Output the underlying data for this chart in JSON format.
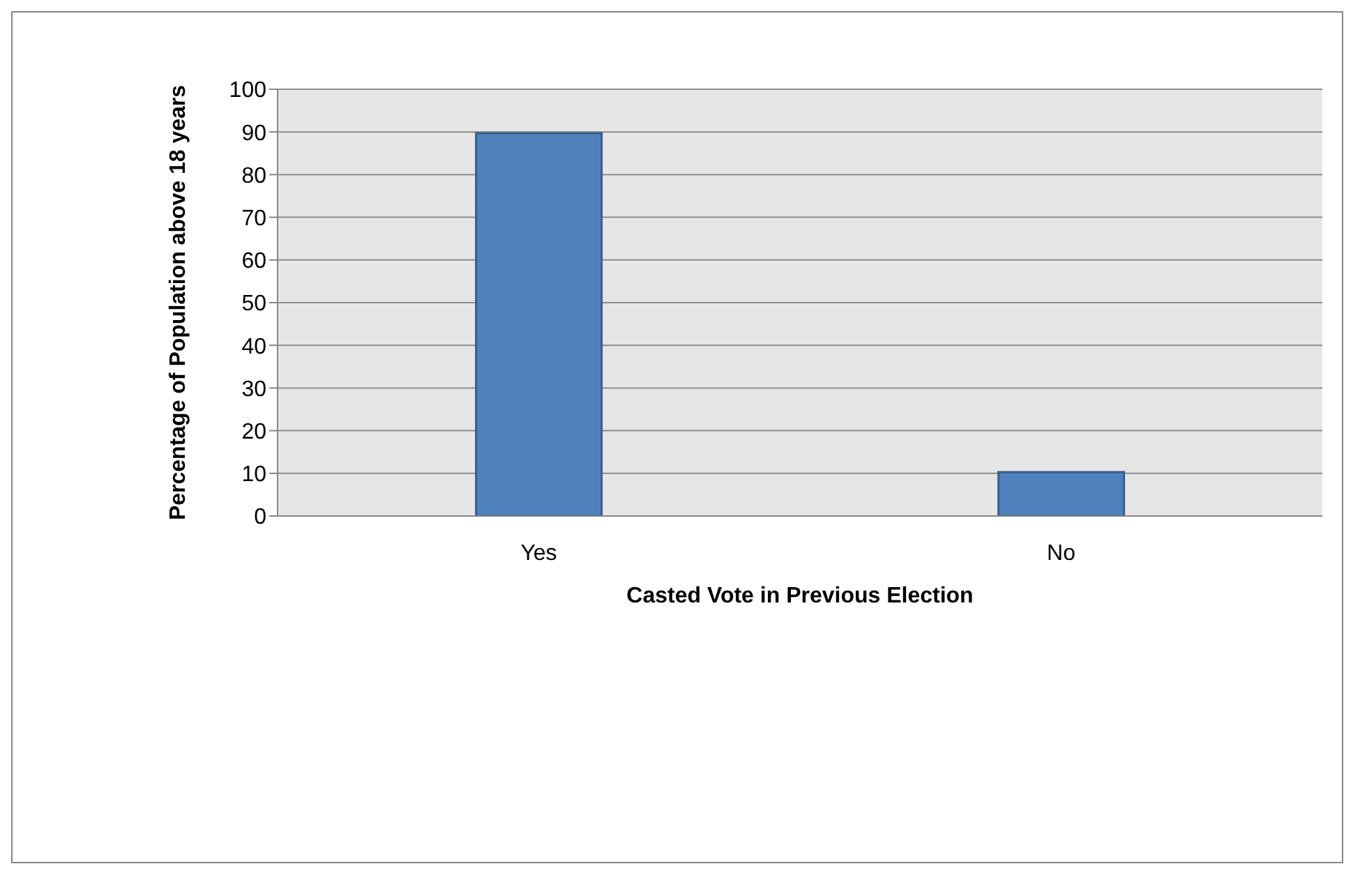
{
  "chart_data": {
    "type": "bar",
    "xlabel": "Casted Vote in Previous Election",
    "ylabel": "Percentage of Population above 18 years",
    "categories": [
      "Yes",
      "No"
    ],
    "values": [
      89.7,
      10.3
    ],
    "color": "#4f81bd",
    "ylim": [
      0,
      100
    ],
    "yticks": [
      0,
      10,
      20,
      30,
      40,
      50,
      60,
      70,
      80,
      90,
      100
    ],
    "grid": "y"
  }
}
